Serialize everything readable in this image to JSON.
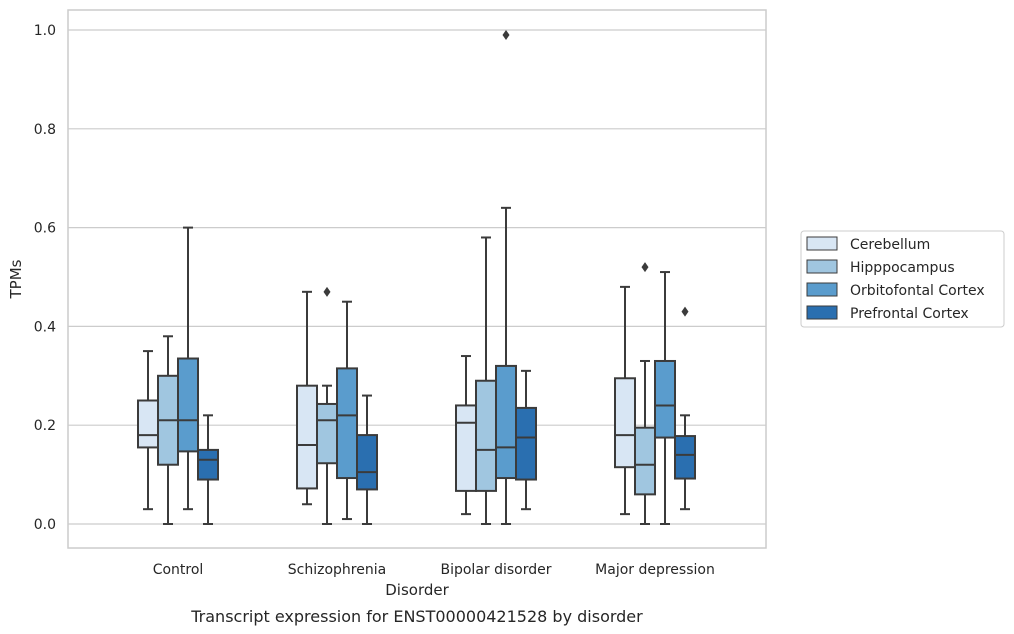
{
  "chart_data": {
    "type": "box",
    "caption": "Transcript expression for ENST00000421528 by disorder",
    "xlabel": "Disorder",
    "ylabel": "TPMs",
    "ylim": [
      -0.05,
      1.04
    ],
    "yticks": [
      0.0,
      0.2,
      0.4,
      0.6,
      0.8,
      1.0
    ],
    "ytick_labels": [
      "0.0",
      "0.2",
      "0.4",
      "0.6",
      "0.8",
      "1.0"
    ],
    "grid": "horizontal",
    "legend_position": "right",
    "categories": [
      "Control",
      "Schizophrenia",
      "Bipolar disorder",
      "Major depression"
    ],
    "series": [
      {
        "name": "Cerebellum",
        "color": "#d8e6f4",
        "boxes": [
          {
            "whisker_low": 0.03,
            "q1": 0.155,
            "median": 0.18,
            "q3": 0.25,
            "whisker_high": 0.35,
            "outliers": []
          },
          {
            "whisker_low": 0.04,
            "q1": 0.072,
            "median": 0.16,
            "q3": 0.28,
            "whisker_high": 0.47,
            "outliers": []
          },
          {
            "whisker_low": 0.02,
            "q1": 0.067,
            "median": 0.205,
            "q3": 0.24,
            "whisker_high": 0.34,
            "outliers": []
          },
          {
            "whisker_low": 0.02,
            "q1": 0.115,
            "median": 0.18,
            "q3": 0.295,
            "whisker_high": 0.48,
            "outliers": []
          }
        ]
      },
      {
        "name": "Hipppocampus",
        "color": "#a0c6e0",
        "boxes": [
          {
            "whisker_low": 0.0,
            "q1": 0.12,
            "median": 0.21,
            "q3": 0.3,
            "whisker_high": 0.38,
            "outliers": []
          },
          {
            "whisker_low": 0.0,
            "q1": 0.123,
            "median": 0.21,
            "q3": 0.243,
            "whisker_high": 0.28,
            "outliers": [
              0.47
            ]
          },
          {
            "whisker_low": 0.0,
            "q1": 0.067,
            "median": 0.15,
            "q3": 0.29,
            "whisker_high": 0.58,
            "outliers": []
          },
          {
            "whisker_low": 0.0,
            "q1": 0.06,
            "median": 0.12,
            "q3": 0.195,
            "whisker_high": 0.33,
            "outliers": [
              0.52
            ]
          }
        ]
      },
      {
        "name": "Orbitofontal Cortex",
        "color": "#5a9ccd",
        "boxes": [
          {
            "whisker_low": 0.03,
            "q1": 0.147,
            "median": 0.21,
            "q3": 0.335,
            "whisker_high": 0.6,
            "outliers": []
          },
          {
            "whisker_low": 0.01,
            "q1": 0.093,
            "median": 0.22,
            "q3": 0.315,
            "whisker_high": 0.45,
            "outliers": []
          },
          {
            "whisker_low": 0.0,
            "q1": 0.093,
            "median": 0.155,
            "q3": 0.32,
            "whisker_high": 0.64,
            "outliers": [
              0.99
            ]
          },
          {
            "whisker_low": 0.0,
            "q1": 0.175,
            "median": 0.24,
            "q3": 0.33,
            "whisker_high": 0.51,
            "outliers": []
          }
        ]
      },
      {
        "name": "Prefrontal Cortex",
        "color": "#2a6fb0",
        "boxes": [
          {
            "whisker_low": 0.0,
            "q1": 0.09,
            "median": 0.13,
            "q3": 0.15,
            "whisker_high": 0.22,
            "outliers": []
          },
          {
            "whisker_low": 0.0,
            "q1": 0.07,
            "median": 0.105,
            "q3": 0.18,
            "whisker_high": 0.26,
            "outliers": []
          },
          {
            "whisker_low": 0.03,
            "q1": 0.09,
            "median": 0.175,
            "q3": 0.235,
            "whisker_high": 0.31,
            "outliers": []
          },
          {
            "whisker_low": 0.03,
            "q1": 0.092,
            "median": 0.14,
            "q3": 0.178,
            "whisker_high": 0.22,
            "outliers": [
              0.43
            ]
          }
        ]
      }
    ]
  }
}
